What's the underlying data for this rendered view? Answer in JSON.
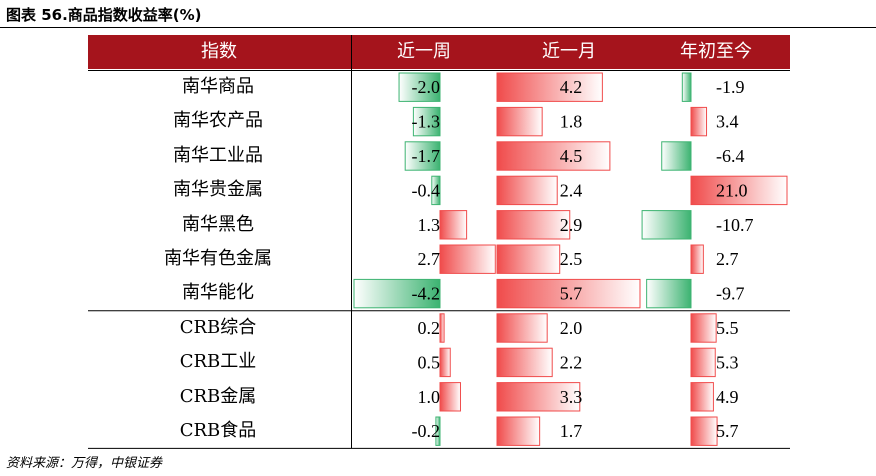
{
  "title": "图表 56.商品指数收益率(%)",
  "source": "资料来源：万得，中银证券",
  "colors": {
    "header_bg": "#a5141c",
    "header_text": "#ffffff",
    "negative_bar": "#3cb371",
    "positive_bar": "#f04b4b"
  },
  "chart_data": {
    "type": "table",
    "title": "图表 56.商品指数收益率(%)",
    "columns": [
      "指数",
      "近一周",
      "近一月",
      "年初至今"
    ],
    "rows": [
      {
        "name": "南华商品",
        "week": -2.0,
        "month": 4.2,
        "ytd": -1.9
      },
      {
        "name": "南华农产品",
        "week": -1.3,
        "month": 1.8,
        "ytd": 3.4
      },
      {
        "name": "南华工业品",
        "week": -1.7,
        "month": 4.5,
        "ytd": -6.4
      },
      {
        "name": "南华贵金属",
        "week": -0.4,
        "month": 2.4,
        "ytd": 21.0
      },
      {
        "name": "南华黑色",
        "week": 1.3,
        "month": 2.9,
        "ytd": -10.7
      },
      {
        "name": "南华有色金属",
        "week": 2.7,
        "month": 2.5,
        "ytd": 2.7
      },
      {
        "name": "南华能化",
        "week": -4.2,
        "month": 5.7,
        "ytd": -9.7
      },
      {
        "name": "CRB综合",
        "week": 0.2,
        "month": 2.0,
        "ytd": 5.5
      },
      {
        "name": "CRB工业",
        "week": 0.5,
        "month": 2.2,
        "ytd": 5.3
      },
      {
        "name": "CRB金属",
        "week": 1.0,
        "month": 3.3,
        "ytd": 4.9
      },
      {
        "name": "CRB食品",
        "week": -0.2,
        "month": 1.7,
        "ytd": 5.7
      }
    ],
    "data_bars": true,
    "group_separator_after_row": 7
  }
}
